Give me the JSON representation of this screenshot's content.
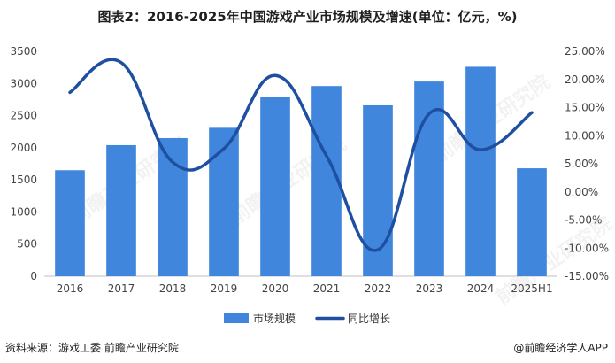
{
  "title": "图表2：2016-2025年中国游戏产业市场规模及增速(单位：亿元，%)",
  "source": "资料来源：游戏工委 前瞻产业研究院",
  "credit": "@前瞻经济学人APP",
  "watermark": "前瞻产业研究院",
  "colors": {
    "bar": "#3f86dc",
    "line": "#1f4fa0",
    "axis": "#bfbfbf",
    "text": "#444444"
  },
  "chart_data": {
    "type": "bar",
    "categories": [
      "2016",
      "2017",
      "2018",
      "2019",
      "2020",
      "2021",
      "2022",
      "2023",
      "2024",
      "2025H1"
    ],
    "series": [
      {
        "name": "市场规模",
        "type": "bar",
        "axis": "left",
        "values": [
          1650,
          2040,
          2150,
          2310,
          2790,
          2960,
          2660,
          3030,
          3260,
          1680
        ]
      },
      {
        "name": "同比增长",
        "type": "line",
        "axis": "right",
        "unit": "%",
        "values": [
          17.7,
          23.0,
          5.3,
          7.7,
          20.7,
          6.4,
          -10.3,
          13.9,
          7.5,
          14.1
        ]
      }
    ],
    "y_left": {
      "min": 0,
      "max": 3500,
      "ticks": [
        0,
        500,
        1000,
        1500,
        2000,
        2500,
        3000,
        3500
      ]
    },
    "y_right": {
      "min": -15,
      "max": 25,
      "ticks": [
        "-15.00%",
        "-10.00%",
        "-5.00%",
        "0.00%",
        "5.00%",
        "10.00%",
        "15.00%",
        "20.00%",
        "25.00%"
      ]
    },
    "legend_position": "bottom",
    "grid": false
  }
}
